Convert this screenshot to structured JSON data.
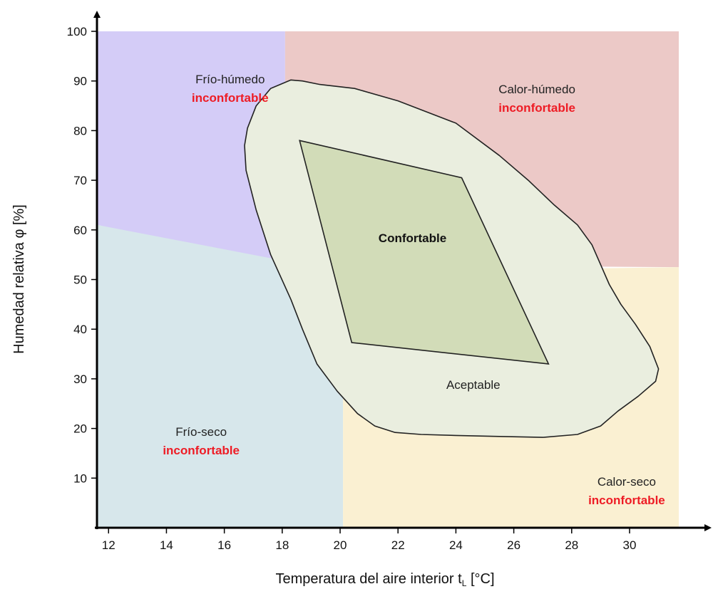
{
  "chart_data": {
    "type": "area",
    "xlabel": "Temperatura del aire interior t",
    "xlabel_sub": "L",
    "xlabel_unit": " [°C]",
    "ylabel": "Humedad relativa φ [%]",
    "xlim": [
      11.6,
      31.7
    ],
    "ylim": [
      0,
      100
    ],
    "x_ticks": [
      12,
      14,
      16,
      18,
      20,
      22,
      24,
      26,
      28,
      30
    ],
    "y_ticks": [
      10,
      20,
      30,
      40,
      50,
      60,
      70,
      80,
      90,
      100
    ],
    "colors": {
      "frio_humedo": "#d4ccf7",
      "calor_humedo": "#ecc9c7",
      "frio_seco": "#d7e7eb",
      "calor_seco": "#faf0d2",
      "acceptable": "#eaeedf",
      "comfortable": "#d2dcb8",
      "status_red": "#ee1c25",
      "outline": "#222222"
    },
    "regions": [
      {
        "name": "Frío-húmedo",
        "status": "inconfortable",
        "color_key": "frio_humedo",
        "polygon": [
          [
            11.6,
            100
          ],
          [
            18.1,
            100
          ],
          [
            18.1,
            53
          ],
          [
            11.6,
            61
          ]
        ],
        "label_at": [
          16.2,
          89.5
        ]
      },
      {
        "name": "Calor-húmedo",
        "status": "inconfortable",
        "color_key": "calor_humedo",
        "polygon": [
          [
            18.1,
            100
          ],
          [
            31.7,
            100
          ],
          [
            31.7,
            52.5
          ],
          [
            18.1,
            53
          ]
        ],
        "label_at": [
          26.8,
          87.5
        ]
      },
      {
        "name": "Frío-seco",
        "status": "inconfortable",
        "color_key": "frio_seco",
        "polygon": [
          [
            11.6,
            61
          ],
          [
            20.1,
            51.5
          ],
          [
            20.1,
            0
          ],
          [
            11.6,
            0
          ]
        ],
        "label_at": [
          15.2,
          18.5
        ]
      },
      {
        "name": "Calor-seco",
        "status": "inconfortable",
        "color_key": "calor_seco",
        "polygon": [
          [
            20.1,
            51.5
          ],
          [
            31.7,
            52.5
          ],
          [
            31.7,
            0
          ],
          [
            20.1,
            0
          ]
        ],
        "label_at": [
          29.9,
          8.5
        ]
      }
    ],
    "acceptable_zone": {
      "label": "Aceptable",
      "label_at": [
        24.6,
        28
      ],
      "polygon": [
        [
          16.7,
          77
        ],
        [
          16.75,
          72
        ],
        [
          17.1,
          64
        ],
        [
          17.6,
          55
        ],
        [
          18.3,
          46
        ],
        [
          18.7,
          40
        ],
        [
          19.2,
          33
        ],
        [
          19.9,
          27.5
        ],
        [
          20.6,
          23
        ],
        [
          21.2,
          20.5
        ],
        [
          21.9,
          19.2
        ],
        [
          22.8,
          18.8
        ],
        [
          24,
          18.6
        ],
        [
          25.5,
          18.4
        ],
        [
          27,
          18.2
        ],
        [
          28.2,
          18.8
        ],
        [
          29,
          20.5
        ],
        [
          29.6,
          23.5
        ],
        [
          30.3,
          26.5
        ],
        [
          30.9,
          29.5
        ],
        [
          31,
          32
        ],
        [
          30.7,
          36.5
        ],
        [
          30.2,
          41
        ],
        [
          29.7,
          45
        ],
        [
          29.3,
          49
        ],
        [
          29,
          53
        ],
        [
          28.7,
          57
        ],
        [
          28.2,
          61
        ],
        [
          27.4,
          65
        ],
        [
          26.5,
          70
        ],
        [
          25.5,
          75
        ],
        [
          24,
          81.5
        ],
        [
          22,
          86
        ],
        [
          20.5,
          88.5
        ],
        [
          19.3,
          89.3
        ],
        [
          18.7,
          90
        ],
        [
          18.3,
          90.2
        ],
        [
          17.6,
          88.5
        ],
        [
          17.1,
          85
        ],
        [
          16.8,
          80.5
        ]
      ]
    },
    "comfortable_zone": {
      "label": "Confortable",
      "label_at": [
        22.5,
        57.5
      ],
      "polygon": [
        [
          18.6,
          78
        ],
        [
          24.2,
          70.5
        ],
        [
          27.2,
          33
        ],
        [
          20.4,
          37.3
        ]
      ]
    }
  }
}
